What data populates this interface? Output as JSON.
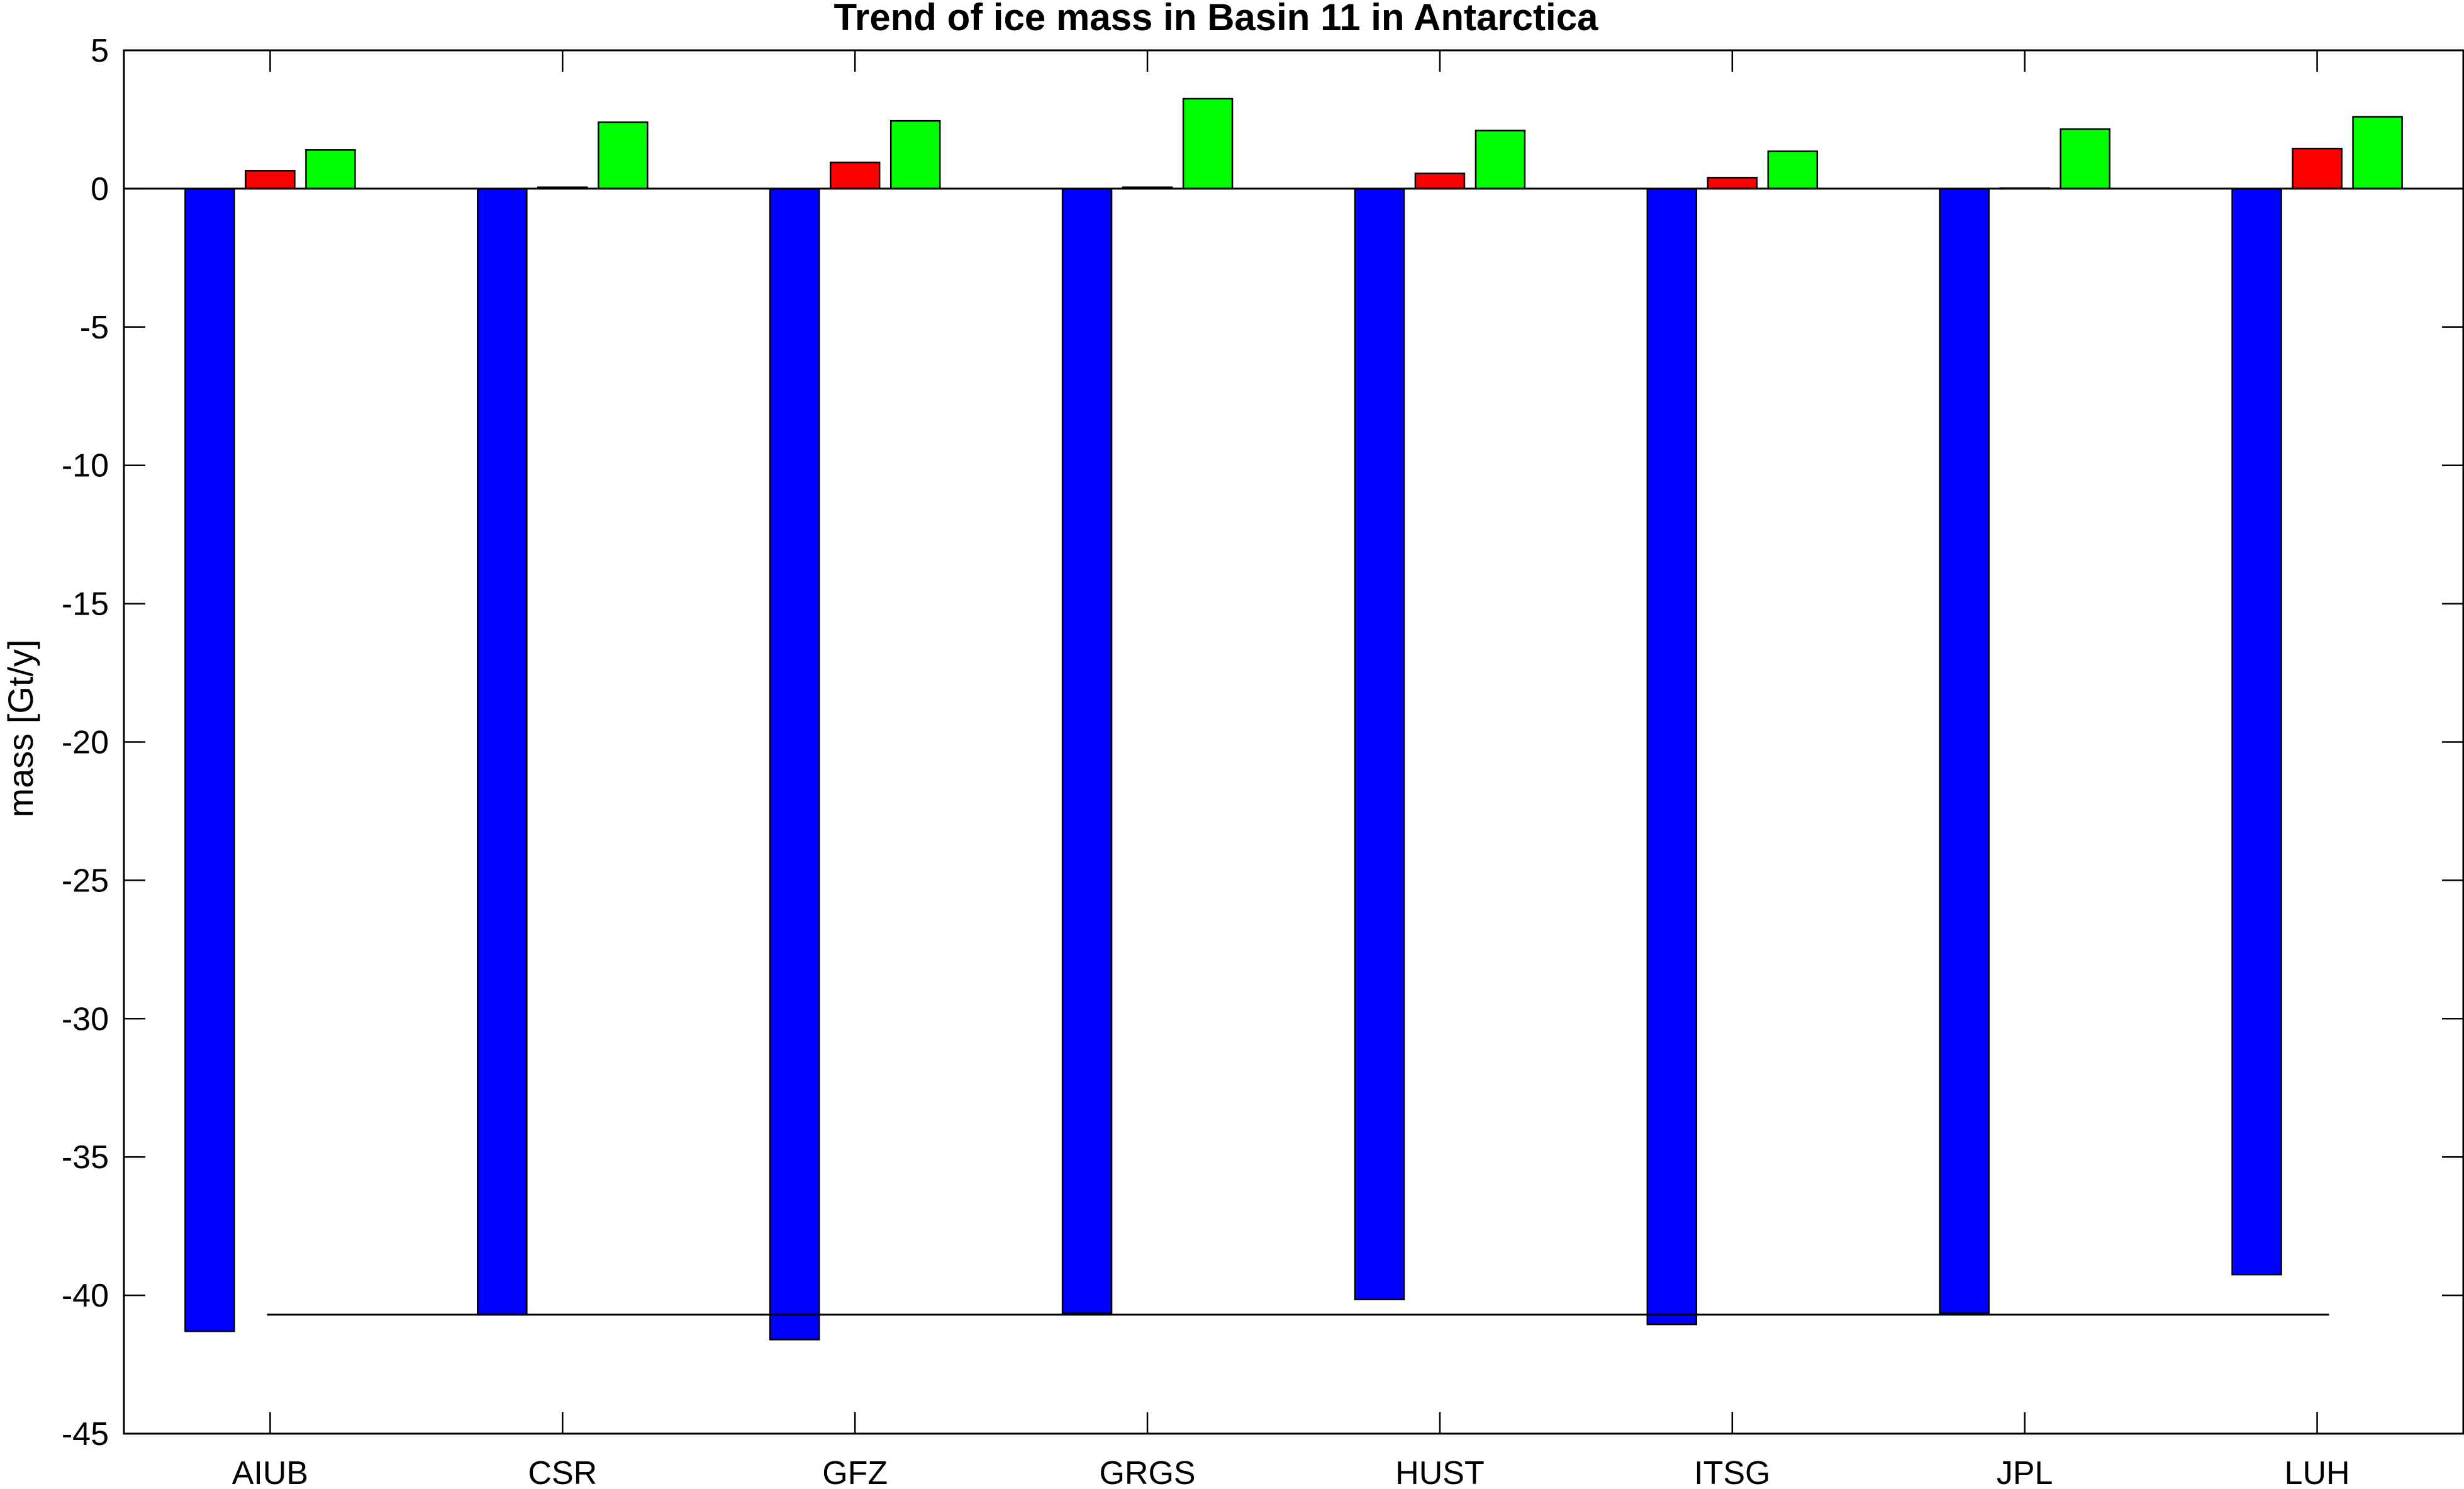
{
  "chart_data": {
    "type": "bar",
    "title": "Trend of ice mass in Basin 11 in Antarctica",
    "xlabel": "",
    "ylabel": "mass [Gt/y]",
    "ylim": [
      -45,
      5
    ],
    "yticks": [
      "5",
      "0",
      "-5",
      "-10",
      "-15",
      "-20",
      "-25",
      "-30",
      "-35",
      "-40",
      "-45"
    ],
    "categories": [
      "AIUB",
      "CSR",
      "GFZ",
      "GRGS",
      "HUST",
      "ITSG",
      "JPL",
      "LUH"
    ],
    "series": [
      {
        "color": "#0000ff",
        "values": [
          -41.3,
          -40.7,
          -41.6,
          -40.65,
          -40.15,
          -41.05,
          -40.65,
          -39.25
        ]
      },
      {
        "color": "#ff0000",
        "values": [
          0.65,
          0.05,
          0.95,
          0.05,
          0.55,
          0.4,
          0.02,
          1.45
        ]
      },
      {
        "color": "#00ff00",
        "values": [
          1.4,
          2.4,
          2.45,
          3.25,
          2.1,
          1.35,
          2.15,
          2.6
        ]
      }
    ],
    "reference_line": {
      "value": -40.7,
      "color": "#000000"
    },
    "zero_line": true,
    "grid": false,
    "legend": "none"
  }
}
